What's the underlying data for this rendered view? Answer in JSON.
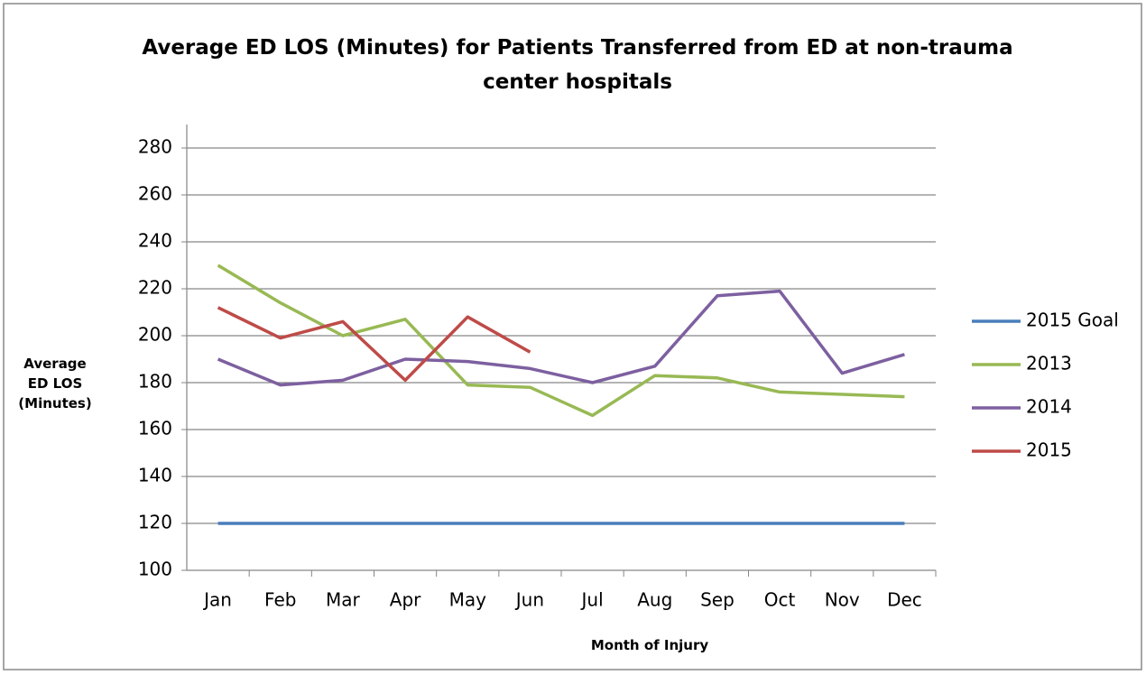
{
  "chart_data": {
    "type": "line",
    "title": "Average ED LOS (Minutes) for Patients Transferred from ED at non-trauma center hospitals",
    "y_label": "Average ED LOS (Minutes)",
    "x_label": "Month of Injury",
    "categories": [
      "Jan",
      "Feb",
      "Mar",
      "Apr",
      "May",
      "Jun",
      "Jul",
      "Aug",
      "Sep",
      "Oct",
      "Nov",
      "Dec"
    ],
    "series": [
      {
        "name": "2015 Goal",
        "color": "#4a7ebb",
        "values": [
          120,
          120,
          120,
          120,
          120,
          120,
          120,
          120,
          120,
          120,
          120,
          120
        ]
      },
      {
        "name": "2013",
        "color": "#98b954",
        "values": [
          230,
          214,
          200,
          207,
          179,
          178,
          166,
          183,
          182,
          176,
          175,
          174
        ]
      },
      {
        "name": "2014",
        "color": "#7d60a0",
        "values": [
          190,
          179,
          181,
          190,
          189,
          186,
          180,
          187,
          217,
          219,
          184,
          192
        ]
      },
      {
        "name": "2015",
        "color": "#be4b48",
        "values": [
          212,
          199,
          206,
          181,
          208,
          193,
          null,
          null,
          null,
          null,
          null,
          null
        ]
      }
    ],
    "ylim": [
      100,
      280
    ],
    "yticks": [
      100,
      120,
      140,
      160,
      180,
      200,
      220,
      240,
      260,
      280
    ],
    "grid": true,
    "legend": "right"
  }
}
